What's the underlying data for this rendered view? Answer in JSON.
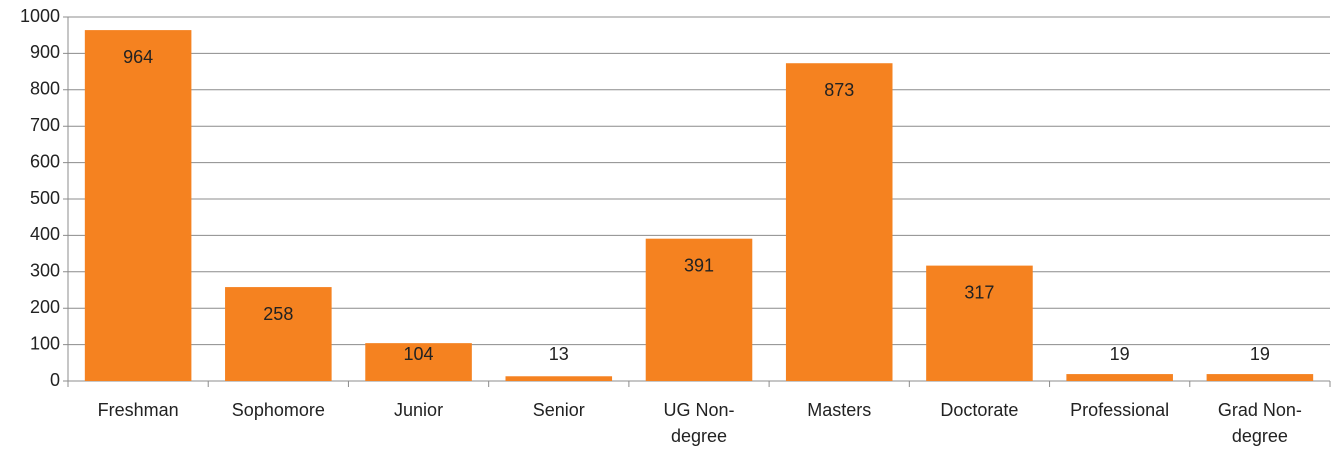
{
  "chart_data": {
    "type": "bar",
    "categories": [
      "Freshman",
      "Sophomore",
      "Junior",
      "Senior",
      "UG Non-degree",
      "Masters",
      "Doctorate",
      "Professional",
      "Grad Non-degree"
    ],
    "values": [
      964,
      258,
      104,
      13,
      391,
      873,
      317,
      19,
      19
    ],
    "color": "#f58220",
    "ylim": [
      0,
      1000
    ],
    "yticks": [
      0,
      100,
      200,
      300,
      400,
      500,
      600,
      700,
      800,
      900,
      1000
    ],
    "grid": true
  }
}
